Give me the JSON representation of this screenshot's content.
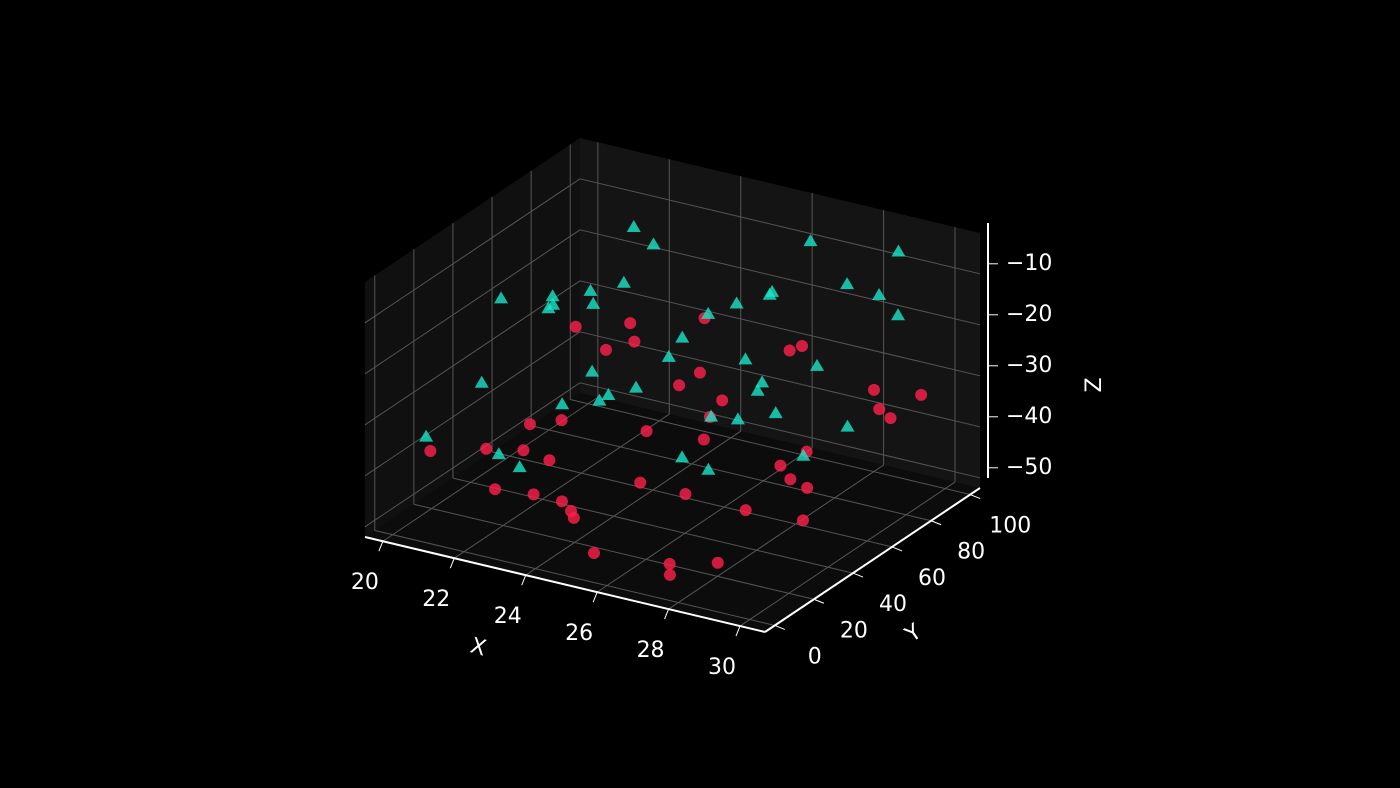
{
  "chart_data": {
    "type": "scatter3d",
    "xlabel": "X",
    "ylabel": "Y",
    "zlabel": "Z",
    "xlim": [
      19.5,
      30.7
    ],
    "ylim": [
      -5,
      105
    ],
    "zlim": [
      -52,
      -2
    ],
    "xticks": [
      20,
      22,
      24,
      26,
      28,
      30
    ],
    "yticks": [
      0,
      20,
      40,
      60,
      80,
      100
    ],
    "zticks": [
      {
        "value": -50,
        "label": "−50"
      },
      {
        "value": -40,
        "label": "−40"
      },
      {
        "value": -30,
        "label": "−30"
      },
      {
        "value": -20,
        "label": "−20"
      },
      {
        "value": -10,
        "label": "−10"
      }
    ],
    "grid": true,
    "series": [
      {
        "marker": "circle",
        "color": "#ff1f4b",
        "x": [
          20.4,
          21.2,
          22.5,
          23.1,
          24.8,
          25.6,
          26.3,
          27.9,
          28.4,
          29.6,
          20.9,
          21.8,
          22.2,
          23.7,
          24.1,
          25.2,
          26.8,
          27.3,
          28.9,
          29.1,
          20.2,
          21.5,
          22.8,
          23.4,
          24.5,
          25.9,
          26.1,
          27.6,
          28.2,
          29.8,
          21.0,
          22.0,
          23.9,
          24.3,
          25.4,
          26.6,
          27.1,
          28.7,
          29.3,
          30.0
        ],
        "y": [
          12,
          45,
          78,
          30,
          5,
          60,
          88,
          22,
          50,
          95,
          70,
          15,
          40,
          92,
          55,
          8,
          35,
          65,
          18,
          80,
          90,
          25,
          58,
          10,
          75,
          42,
          98,
          3,
          62,
          33,
          52,
          85,
          20,
          68,
          28,
          48,
          12,
          90,
          40,
          72
        ],
        "z": [
          -38,
          -45,
          -30,
          -48,
          -42,
          -35,
          -28,
          -50,
          -40,
          -33,
          -46,
          -36,
          -44,
          -27,
          -39,
          -49,
          -31,
          -43,
          -37,
          -29,
          -34,
          -47,
          -26,
          -41,
          -32,
          -45,
          -30,
          -48,
          -38,
          -35,
          -42,
          -29,
          -46,
          -33,
          -40,
          -27,
          -49,
          -36,
          -44,
          -31
        ]
      },
      {
        "marker": "triangle",
        "color": "#19e6c8",
        "x": [
          20.3,
          21.4,
          22.1,
          23.6,
          24.2,
          25.8,
          26.5,
          27.2,
          28.6,
          29.4,
          20.8,
          21.9,
          22.7,
          23.2,
          24.9,
          25.1,
          26.9,
          27.8,
          28.1,
          29.9,
          20.5,
          21.1,
          22.4,
          23.8,
          24.6,
          25.5,
          26.2,
          27.5,
          28.8,
          29.2,
          21.6,
          22.9,
          23.3,
          24.4,
          25.7,
          26.4,
          27.0,
          28.3,
          29.5,
          30.0
        ],
        "y": [
          50,
          20,
          85,
          40,
          10,
          70,
          95,
          30,
          60,
          15,
          88,
          45,
          5,
          75,
          35,
          55,
          22,
          90,
          48,
          68,
          8,
          62,
          38,
          92,
          18,
          80,
          28,
          52,
          98,
          42,
          72,
          12,
          58,
          30,
          90,
          46,
          65,
          25,
          85,
          50
        ],
        "z": [
          -18,
          -25,
          -10,
          -30,
          -22,
          -15,
          -8,
          -35,
          -20,
          -12,
          -28,
          -16,
          -33,
          -9,
          -24,
          -19,
          -31,
          -13,
          -27,
          -6,
          -34,
          -21,
          -11,
          -26,
          -17,
          -29,
          -14,
          -23,
          -7,
          -32,
          -20,
          -37,
          -12,
          -25,
          -18,
          -30,
          -10,
          -22,
          -15,
          -27
        ]
      }
    ]
  }
}
